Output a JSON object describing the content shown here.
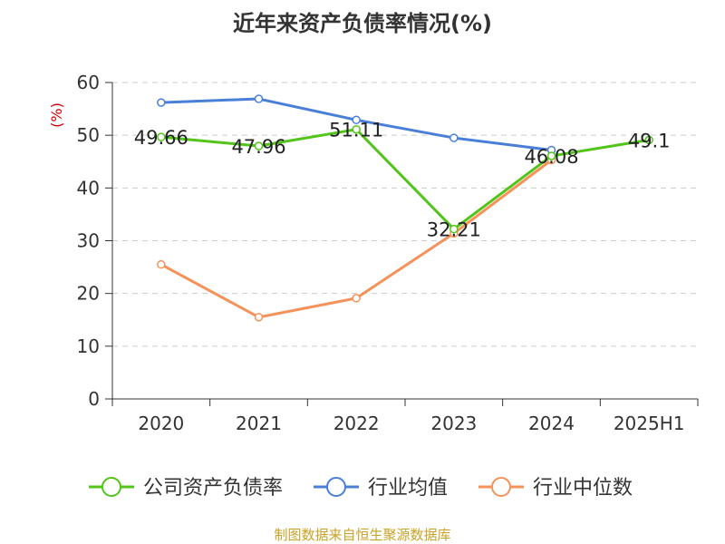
{
  "chart_data": {
    "type": "line",
    "title": "近年来资产负债率情况(%)",
    "unit_label": "(%)",
    "categories": [
      "2020",
      "2021",
      "2022",
      "2023",
      "2024",
      "2025H1"
    ],
    "ylim": [
      0,
      60
    ],
    "yticks": [
      0,
      10,
      20,
      30,
      40,
      50,
      60
    ],
    "grid": true,
    "legend_position": "bottom",
    "series": [
      {
        "name": "公司资产负债率",
        "color": "#52c41a",
        "values": [
          49.66,
          47.96,
          51.11,
          32.21,
          46.08,
          49.1
        ],
        "labels": [
          "49.66",
          "47.96",
          "51.11",
          "32.21",
          "46.08",
          "49.1"
        ]
      },
      {
        "name": "行业均值",
        "color": "#4a7fd8",
        "values": [
          56.2,
          56.9,
          52.9,
          49.5,
          47.2,
          null
        ]
      },
      {
        "name": "行业中位数",
        "color": "#f5925a",
        "values": [
          25.5,
          15.5,
          19.1,
          31.4,
          45.3,
          null
        ]
      }
    ],
    "source": "制图数据来自恒生聚源数据库"
  }
}
